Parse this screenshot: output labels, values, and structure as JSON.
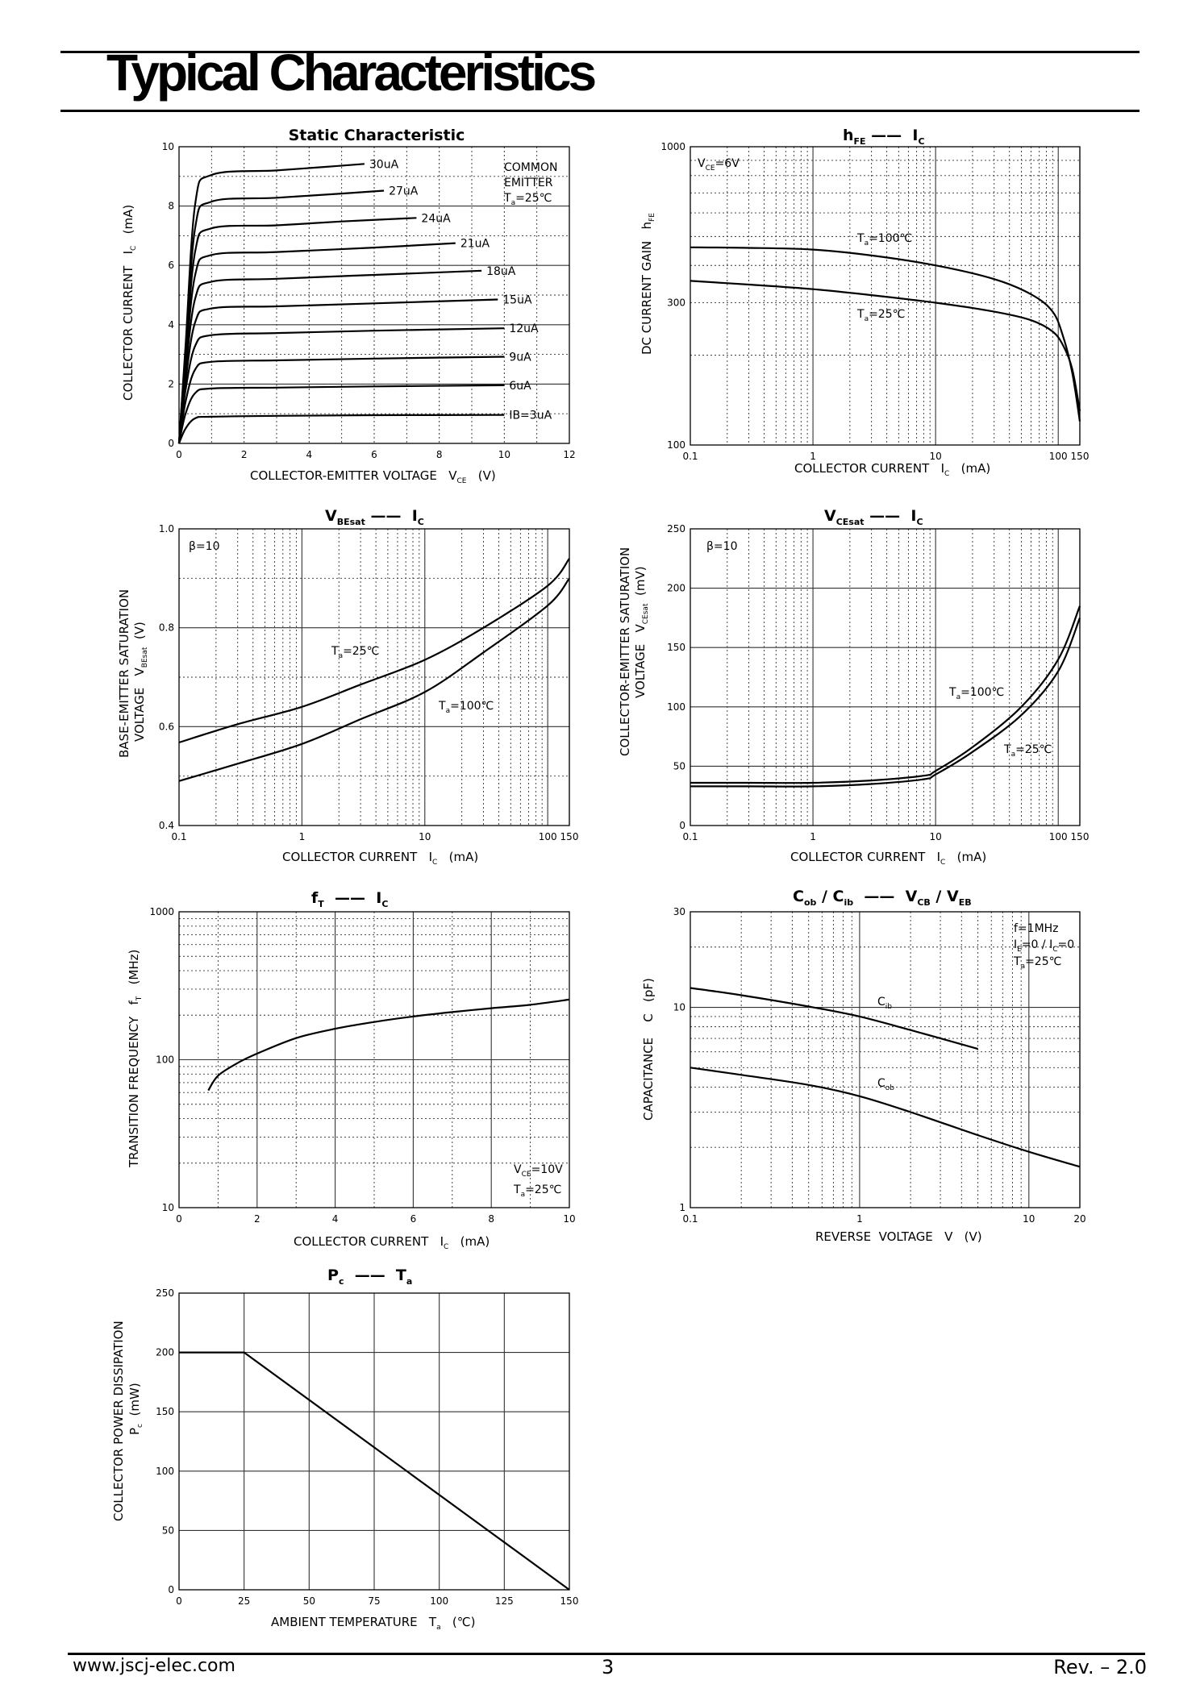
{
  "header": {
    "title": "Typical Characteristics"
  },
  "footer": {
    "url": "www.jscj-elec.com",
    "page": "3",
    "revision": "Rev. – 2.0"
  },
  "chart_data": [
    {
      "id": "static",
      "type": "line",
      "title": "Static Characteristic",
      "xlabel": "COLLECTOR-EMITTER VOLTAGE V_CE (V)",
      "ylabel": "COLLECTOR CURRENT I_C (mA)",
      "xscale": "linear",
      "yscale": "linear",
      "xlim": [
        0,
        12
      ],
      "ylim": [
        0,
        10
      ],
      "xticks": [
        0,
        2,
        4,
        6,
        8,
        10,
        12
      ],
      "yticks": [
        0,
        2,
        4,
        6,
        8,
        10
      ],
      "annotations": [
        "COMMON",
        "EMITTER",
        "Ta=25℃"
      ],
      "series": [
        {
          "name": "IB=3uA",
          "x": [
            0,
            0.2,
            0.5,
            1,
            3,
            6,
            10
          ],
          "y": [
            0,
            0.5,
            0.85,
            0.9,
            0.93,
            0.95,
            0.96
          ]
        },
        {
          "name": "6uA",
          "x": [
            0,
            0.2,
            0.5,
            1,
            3,
            6,
            10
          ],
          "y": [
            0,
            1.0,
            1.7,
            1.85,
            1.88,
            1.92,
            1.96
          ]
        },
        {
          "name": "9uA",
          "x": [
            0,
            0.2,
            0.5,
            1,
            3,
            6,
            10
          ],
          "y": [
            0,
            1.4,
            2.5,
            2.75,
            2.8,
            2.86,
            2.92
          ]
        },
        {
          "name": "12uA",
          "x": [
            0,
            0.2,
            0.5,
            1,
            3,
            6,
            10
          ],
          "y": [
            0,
            1.8,
            3.3,
            3.65,
            3.72,
            3.8,
            3.88
          ]
        },
        {
          "name": "15uA",
          "x": [
            0,
            0.2,
            0.5,
            1,
            3,
            6,
            9.8
          ],
          "y": [
            0,
            2.1,
            4.1,
            4.55,
            4.62,
            4.72,
            4.85
          ]
        },
        {
          "name": "18uA",
          "x": [
            0,
            0.2,
            0.5,
            1,
            3,
            6,
            9.3
          ],
          "y": [
            0,
            2.4,
            4.9,
            5.45,
            5.55,
            5.68,
            5.82
          ]
        },
        {
          "name": "21uA",
          "x": [
            0,
            0.2,
            0.5,
            1,
            3,
            6,
            8.5
          ],
          "y": [
            0,
            2.7,
            5.7,
            6.35,
            6.45,
            6.6,
            6.75
          ]
        },
        {
          "name": "24uA",
          "x": [
            0,
            0.2,
            0.5,
            1,
            3,
            5,
            7.3
          ],
          "y": [
            0,
            2.9,
            6.5,
            7.25,
            7.35,
            7.48,
            7.6
          ]
        },
        {
          "name": "27uA",
          "x": [
            0,
            0.2,
            0.5,
            1,
            3,
            5,
            6.3
          ],
          "y": [
            0,
            3.1,
            7.3,
            8.15,
            8.28,
            8.42,
            8.52
          ]
        },
        {
          "name": "30uA",
          "x": [
            0,
            0.2,
            0.5,
            1,
            3,
            4.5,
            5.7
          ],
          "y": [
            0,
            3.3,
            8.1,
            9.05,
            9.2,
            9.32,
            9.42
          ]
        }
      ]
    },
    {
      "id": "hfe",
      "type": "line",
      "title": "hFE —— IC",
      "xlabel": "COLLECTOR CURRENT IC (mA)",
      "ylabel": "DC CURRENT GAIN hFE",
      "xscale": "log",
      "yscale": "log",
      "xlim": [
        0.1,
        150
      ],
      "ylim": [
        100,
        1000
      ],
      "xticks": [
        "0.1",
        "1",
        "10",
        "100",
        "150"
      ],
      "yticks": [
        "100",
        "300",
        "1000"
      ],
      "annotations": [
        "VCE=6V"
      ],
      "series": [
        {
          "name": "Ta=100℃",
          "x": [
            0.1,
            0.3,
            1,
            3,
            10,
            30,
            60,
            90,
            110,
            130,
            150
          ],
          "y": [
            460,
            458,
            452,
            432,
            400,
            360,
            320,
            280,
            230,
            175,
            120
          ]
        },
        {
          "name": "Ta=25℃",
          "x": [
            0.1,
            0.3,
            1,
            3,
            10,
            30,
            60,
            90,
            110,
            130,
            150
          ],
          "y": [
            355,
            345,
            333,
            318,
            300,
            280,
            262,
            240,
            215,
            180,
            130
          ]
        }
      ]
    },
    {
      "id": "vbesat",
      "type": "line",
      "title": "VBEsat —— IC",
      "xlabel": "COLLECTOR CURRENT IC (mA)",
      "ylabel": "BASE-EMITTER SATURATION VOLTAGE VBEsat (V)",
      "xscale": "log",
      "yscale": "linear",
      "xlim": [
        0.1,
        150
      ],
      "ylim": [
        0.4,
        1.0
      ],
      "xticks": [
        "0.1",
        "1",
        "10",
        "100",
        "150"
      ],
      "yticks": [
        "0.4",
        "0.6",
        "0.8",
        "1.0"
      ],
      "annotations": [
        "β=10"
      ],
      "series": [
        {
          "name": "Ta=25℃",
          "x": [
            0.1,
            0.3,
            1,
            3,
            10,
            30,
            100,
            150
          ],
          "y": [
            0.568,
            0.605,
            0.64,
            0.685,
            0.735,
            0.8,
            0.885,
            0.94
          ]
        },
        {
          "name": "Ta=100℃",
          "x": [
            0.1,
            0.3,
            1,
            3,
            10,
            30,
            100,
            150
          ],
          "y": [
            0.49,
            0.525,
            0.565,
            0.615,
            0.67,
            0.75,
            0.845,
            0.9
          ]
        }
      ]
    },
    {
      "id": "vcesat",
      "type": "line",
      "title": "VCEsat —— IC",
      "xlabel": "COLLECTOR CURRENT IC (mA)",
      "ylabel": "COLLECTOR-EMITTER SATURATION VOLTAGE VCEsat (mV)",
      "xscale": "log",
      "yscale": "linear",
      "xlim": [
        0.1,
        150
      ],
      "ylim": [
        0,
        250
      ],
      "xticks": [
        "0.1",
        "1",
        "10",
        "100",
        "150"
      ],
      "yticks": [
        "0",
        "50",
        "100",
        "150",
        "200",
        "250"
      ],
      "annotations": [
        "β=10"
      ],
      "series": [
        {
          "name": "Ta=100℃",
          "x": [
            0.1,
            0.3,
            1,
            3,
            8,
            10,
            20,
            50,
            100,
            150
          ],
          "y": [
            36,
            36,
            36,
            38,
            42,
            46,
            66,
            100,
            140,
            185
          ]
        },
        {
          "name": "Ta=25℃",
          "x": [
            0.1,
            0.3,
            1,
            3,
            8,
            10,
            20,
            50,
            100,
            150
          ],
          "y": [
            33,
            33,
            33,
            35,
            39,
            43,
            62,
            93,
            130,
            175
          ]
        }
      ]
    },
    {
      "id": "ft",
      "type": "line",
      "title": "fT —— IC",
      "xlabel": "COLLECTOR CURRENT IC (mA)",
      "ylabel": "TRANSITION FREQUENCY fT (MHz)",
      "xscale": "linear",
      "yscale": "log",
      "xlim": [
        0,
        10
      ],
      "ylim": [
        10,
        1000
      ],
      "xticks": [
        "0",
        "2",
        "4",
        "6",
        "8",
        "10"
      ],
      "yticks": [
        "10",
        "100",
        "1000"
      ],
      "annotations": [
        "VCE=10V",
        "Ta=25℃"
      ],
      "series": [
        {
          "name": "fT",
          "x": [
            0.75,
            1,
            1.5,
            2,
            3,
            4,
            5,
            6,
            7,
            8,
            9,
            10
          ],
          "y": [
            62,
            78,
            95,
            110,
            140,
            162,
            180,
            196,
            210,
            223,
            235,
            255
          ]
        }
      ]
    },
    {
      "id": "cap",
      "type": "line",
      "title": "Cob / Cib —— VCB / VEB",
      "xlabel": "REVERSE VOLTAGE V (V)",
      "ylabel": "CAPACITANCE C (pF)",
      "xscale": "log",
      "yscale": "log",
      "xlim": [
        0.1,
        20
      ],
      "ylim": [
        1,
        30
      ],
      "xticks": [
        "0.1",
        "1",
        "10",
        "20"
      ],
      "yticks": [
        "1",
        "10",
        "30"
      ],
      "annotations": [
        "f=1MHz",
        "IE=0 / IC=0",
        "Ta=25℃"
      ],
      "series": [
        {
          "name": "Cib",
          "x": [
            0.1,
            0.2,
            0.5,
            1,
            2,
            5
          ],
          "y": [
            12.5,
            11.5,
            10.1,
            9.0,
            7.7,
            6.2
          ]
        },
        {
          "name": "Cob",
          "x": [
            0.1,
            0.2,
            0.5,
            1,
            2,
            5,
            10,
            20
          ],
          "y": [
            5.0,
            4.6,
            4.1,
            3.6,
            3.0,
            2.3,
            1.9,
            1.6
          ]
        }
      ]
    },
    {
      "id": "pc",
      "type": "line",
      "title": "Pc —— Ta",
      "xlabel": "AMBIENT TEMPERATURE Ta (℃)",
      "ylabel": "COLLECTOR POWER DISSIPATION Pc (mW)",
      "xscale": "linear",
      "yscale": "linear",
      "xlim": [
        0,
        150
      ],
      "ylim": [
        0,
        250
      ],
      "xticks": [
        "0",
        "25",
        "50",
        "75",
        "100",
        "125",
        "150"
      ],
      "yticks": [
        "0",
        "50",
        "100",
        "150",
        "200",
        "250"
      ],
      "series": [
        {
          "name": "Pc",
          "x": [
            0,
            25,
            150
          ],
          "y": [
            200,
            200,
            0
          ]
        }
      ]
    }
  ]
}
